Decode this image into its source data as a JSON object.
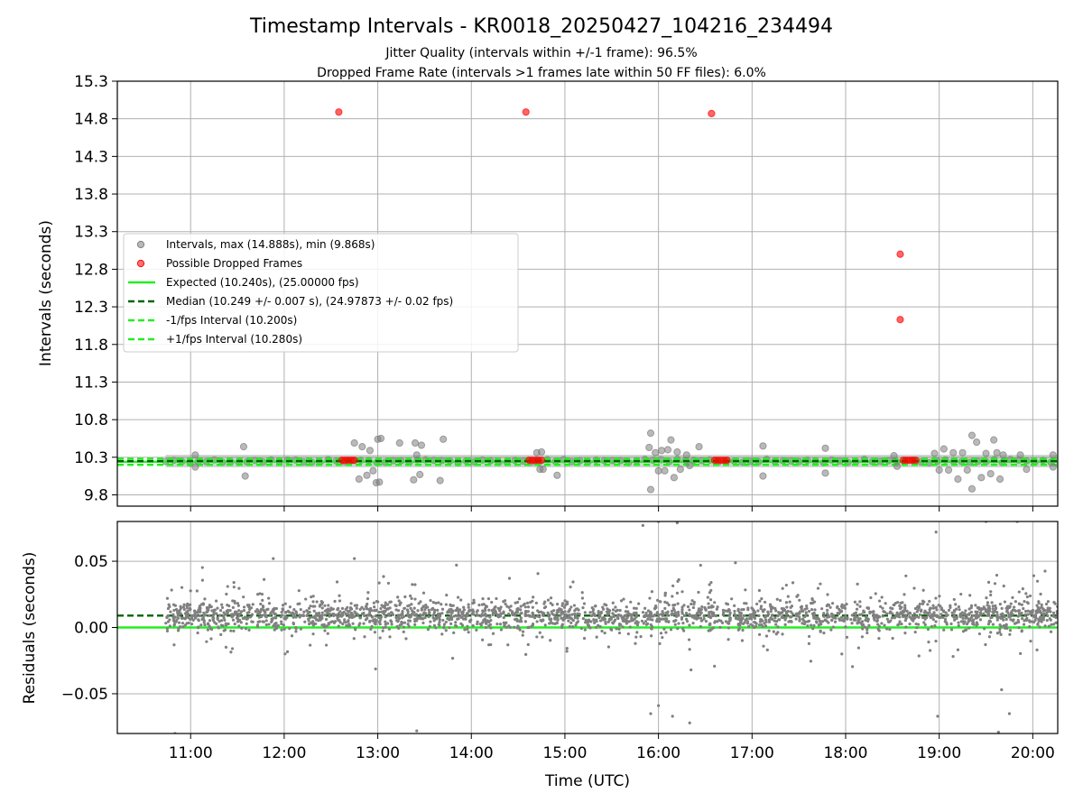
{
  "title": "Timestamp Intervals - KR0018_20250427_104216_234494",
  "subtitle_lines": [
    "Jitter Quality (intervals within +/-1 frame): 96.5%",
    "Dropped Frame Rate (intervals >1 frames late within 50 FF files): 6.0%"
  ],
  "colors": {
    "intervals": "#808080",
    "dropped": "#ff0000",
    "expected": "#22ee22",
    "median": "#006400",
    "bound": "#22ee22",
    "grid": "#b0b0b0"
  },
  "chart_data": [
    {
      "type": "scatter",
      "ylabel": "Intervals (seconds)",
      "xlim": [
        "10:13",
        "20:16"
      ],
      "ylim": [
        9.65,
        15.3
      ],
      "yticks": [
        "9.8",
        "10.3",
        "10.8",
        "11.3",
        "11.8",
        "12.3",
        "12.8",
        "13.3",
        "13.8",
        "14.3",
        "14.8",
        "15.3"
      ],
      "grid": true,
      "legend_position": "center-left",
      "legend": [
        "Intervals, max (14.888s), min (9.868s)",
        "Possible Dropped Frames",
        "Expected (10.240s), (25.00000 fps)",
        "Median (10.249 +/- 0.007 s), (24.97873 +/- 0.02 fps)",
        "-1/fps Interval (10.200s)",
        "+1/fps Interval (10.280s)"
      ],
      "expected": 10.24,
      "median": 10.249,
      "lower_bound": 10.2,
      "upper_bound": 10.28,
      "dropped_frames": [
        {
          "x": "12:35",
          "y": 14.89
        },
        {
          "x": "14:35",
          "y": 14.89
        },
        {
          "x": "16:34",
          "y": 14.87
        },
        {
          "x": "18:35",
          "y": 13.0
        },
        {
          "x": "18:35",
          "y": 12.13
        },
        {
          "x": "12:37",
          "y": 10.26
        },
        {
          "x": "12:39",
          "y": 10.26
        },
        {
          "x": "12:41",
          "y": 10.26
        },
        {
          "x": "12:43",
          "y": 10.26
        },
        {
          "x": "12:45",
          "y": 10.26
        },
        {
          "x": "14:37",
          "y": 10.26
        },
        {
          "x": "14:39",
          "y": 10.26
        },
        {
          "x": "14:41",
          "y": 10.26
        },
        {
          "x": "14:43",
          "y": 10.26
        },
        {
          "x": "14:45",
          "y": 10.26
        },
        {
          "x": "16:36",
          "y": 10.26
        },
        {
          "x": "16:38",
          "y": 10.26
        },
        {
          "x": "16:40",
          "y": 10.26
        },
        {
          "x": "16:42",
          "y": 10.26
        },
        {
          "x": "16:44",
          "y": 10.26
        },
        {
          "x": "18:37",
          "y": 10.26
        },
        {
          "x": "18:39",
          "y": 10.26
        },
        {
          "x": "18:41",
          "y": 10.26
        },
        {
          "x": "18:43",
          "y": 10.26
        },
        {
          "x": "18:45",
          "y": 10.26
        }
      ],
      "intervals_band": {
        "x_start": "10:44",
        "x_end": "20:16",
        "y": 10.25
      },
      "intervals_outliers": [
        {
          "x": "11:03",
          "y": 10.33
        },
        {
          "x": "11:03",
          "y": 10.17
        },
        {
          "x": "11:34",
          "y": 10.44
        },
        {
          "x": "11:35",
          "y": 10.05
        },
        {
          "x": "12:45",
          "y": 10.49
        },
        {
          "x": "12:48",
          "y": 10.01
        },
        {
          "x": "12:50",
          "y": 10.44
        },
        {
          "x": "12:53",
          "y": 10.06
        },
        {
          "x": "12:55",
          "y": 10.39
        },
        {
          "x": "12:57",
          "y": 10.12
        },
        {
          "x": "12:59",
          "y": 9.96
        },
        {
          "x": "13:00",
          "y": 10.54
        },
        {
          "x": "13:01",
          "y": 9.97
        },
        {
          "x": "13:02",
          "y": 10.55
        },
        {
          "x": "13:14",
          "y": 10.49
        },
        {
          "x": "13:23",
          "y": 10.0
        },
        {
          "x": "13:24",
          "y": 10.49
        },
        {
          "x": "13:25",
          "y": 10.33
        },
        {
          "x": "13:27",
          "y": 10.07
        },
        {
          "x": "13:28",
          "y": 10.46
        },
        {
          "x": "13:40",
          "y": 9.99
        },
        {
          "x": "13:42",
          "y": 10.54
        },
        {
          "x": "14:42",
          "y": 10.36
        },
        {
          "x": "14:45",
          "y": 10.37
        },
        {
          "x": "14:44",
          "y": 10.14
        },
        {
          "x": "14:46",
          "y": 10.14
        },
        {
          "x": "14:55",
          "y": 10.06
        },
        {
          "x": "15:54",
          "y": 10.43
        },
        {
          "x": "15:55",
          "y": 10.62
        },
        {
          "x": "15:55",
          "y": 9.87
        },
        {
          "x": "15:58",
          "y": 10.36
        },
        {
          "x": "16:00",
          "y": 10.12
        },
        {
          "x": "16:02",
          "y": 10.39
        },
        {
          "x": "16:04",
          "y": 10.12
        },
        {
          "x": "16:06",
          "y": 10.4
        },
        {
          "x": "16:08",
          "y": 10.53
        },
        {
          "x": "16:10",
          "y": 10.03
        },
        {
          "x": "16:12",
          "y": 10.37
        },
        {
          "x": "16:14",
          "y": 10.14
        },
        {
          "x": "16:18",
          "y": 10.33
        },
        {
          "x": "16:20",
          "y": 10.19
        },
        {
          "x": "16:26",
          "y": 10.44
        },
        {
          "x": "17:07",
          "y": 10.45
        },
        {
          "x": "17:07",
          "y": 10.05
        },
        {
          "x": "17:47",
          "y": 10.42
        },
        {
          "x": "17:47",
          "y": 10.09
        },
        {
          "x": "18:31",
          "y": 10.32
        },
        {
          "x": "18:33",
          "y": 10.18
        },
        {
          "x": "18:57",
          "y": 10.35
        },
        {
          "x": "19:00",
          "y": 10.13
        },
        {
          "x": "19:03",
          "y": 10.41
        },
        {
          "x": "19:06",
          "y": 10.13
        },
        {
          "x": "19:09",
          "y": 10.36
        },
        {
          "x": "19:12",
          "y": 10.01
        },
        {
          "x": "19:15",
          "y": 10.36
        },
        {
          "x": "19:18",
          "y": 10.13
        },
        {
          "x": "19:21",
          "y": 10.59
        },
        {
          "x": "19:21",
          "y": 9.88
        },
        {
          "x": "19:24",
          "y": 10.5
        },
        {
          "x": "19:27",
          "y": 10.03
        },
        {
          "x": "19:30",
          "y": 10.35
        },
        {
          "x": "19:33",
          "y": 10.08
        },
        {
          "x": "19:35",
          "y": 10.53
        },
        {
          "x": "19:37",
          "y": 10.36
        },
        {
          "x": "19:39",
          "y": 10.01
        },
        {
          "x": "19:41",
          "y": 10.33
        },
        {
          "x": "19:52",
          "y": 10.33
        },
        {
          "x": "19:56",
          "y": 10.14
        },
        {
          "x": "20:13",
          "y": 10.33
        },
        {
          "x": "20:13",
          "y": 10.17
        }
      ]
    },
    {
      "type": "scatter",
      "xlabel": "Time (UTC)",
      "ylabel": "Residuals (seconds)",
      "xlim": [
        "10:13",
        "20:16"
      ],
      "ylim": [
        -0.08,
        0.08
      ],
      "xticks": [
        "11:00",
        "12:00",
        "13:00",
        "14:00",
        "15:00",
        "16:00",
        "17:00",
        "18:00",
        "19:00",
        "20:00"
      ],
      "yticks": [
        "−0.05",
        "0.00",
        "0.05"
      ],
      "grid": true,
      "expected_residual": 0.0,
      "median_residual": 0.009,
      "residuals_start": "10:44",
      "residuals_end": "20:16",
      "residuals_core": 0.009,
      "residuals_spread": 0.012,
      "residuals_outliers": [
        {
          "x": "11:53",
          "y": 0.052
        },
        {
          "x": "12:45",
          "y": 0.052
        },
        {
          "x": "15:50",
          "y": 0.077
        },
        {
          "x": "16:00",
          "y": 0.08
        },
        {
          "x": "16:12",
          "y": 0.079
        },
        {
          "x": "16:27",
          "y": 0.047
        },
        {
          "x": "18:58",
          "y": 0.072
        },
        {
          "x": "19:30",
          "y": 0.08
        },
        {
          "x": "19:50",
          "y": 0.08
        },
        {
          "x": "10:50",
          "y": -0.08
        },
        {
          "x": "13:25",
          "y": -0.078
        },
        {
          "x": "15:55",
          "y": -0.065
        },
        {
          "x": "16:00",
          "y": -0.059
        },
        {
          "x": "16:09",
          "y": -0.067
        },
        {
          "x": "16:20",
          "y": -0.072
        },
        {
          "x": "18:59",
          "y": -0.067
        },
        {
          "x": "19:38",
          "y": -0.079
        },
        {
          "x": "19:45",
          "y": -0.065
        },
        {
          "x": "19:40",
          "y": -0.047
        }
      ]
    }
  ]
}
